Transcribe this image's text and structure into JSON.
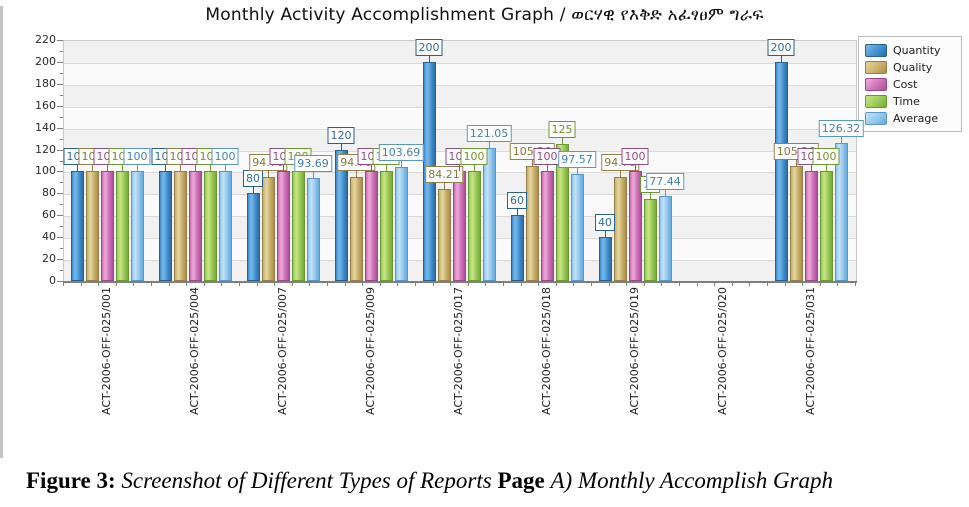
{
  "title": "Monthly Activity Accomplishment Graph / ወርሃዊ የእቅድ አፈፃፀም ግራፍ",
  "chart_data": {
    "type": "bar",
    "title": "Monthly Activity Accomplishment Graph / ወርሃዊ የእቅድ አፈፃፀም ግራፍ",
    "categories": [
      "ACT-2006-OFF-025/001",
      "ACT-2006-OFF-025/004",
      "ACT-2006-OFF-025/007",
      "ACT-2006-OFF-025/009",
      "ACT-2006-OFF-025/017",
      "ACT-2006-OFF-025/018",
      "ACT-2006-OFF-025/019",
      "ACT-2006-OFF-025/020",
      "ACT-2006-OFF-025/031"
    ],
    "series": [
      {
        "name": "Quantity",
        "values": [
          100,
          100,
          80,
          120,
          200,
          60,
          40,
          null,
          200
        ],
        "colors": {
          "light": "#7cb9e8",
          "base": "#3f8ecf",
          "dark": "#2e6da8",
          "border": "#2a628f",
          "label": "#2f6da5"
        }
      },
      {
        "name": "Quality",
        "values": [
          100,
          100,
          94.76,
          94.76,
          84.21,
          105.26,
          94.76,
          null,
          105.26
        ],
        "colors": {
          "light": "#e6d7a2",
          "base": "#c7ae68",
          "dark": "#a68f4b",
          "border": "#94804a",
          "label": "#8a7538"
        }
      },
      {
        "name": "Cost",
        "values": [
          100,
          100,
          100,
          100,
          100,
          100,
          100,
          null,
          100
        ],
        "colors": {
          "light": "#ecacda",
          "base": "#cc6eb4",
          "dark": "#a85494",
          "border": "#954a85",
          "label": "#a2438d"
        }
      },
      {
        "name": "Time",
        "values": [
          100,
          100,
          100,
          100,
          100,
          125,
          75,
          null,
          100
        ],
        "colors": {
          "light": "#c8e58c",
          "base": "#97c951",
          "dark": "#7aa93c",
          "border": "#6d9634",
          "label": "#6f9426"
        }
      },
      {
        "name": "Average",
        "values": [
          100,
          100,
          93.69,
          103.69,
          121.05,
          97.57,
          77.44,
          null,
          126.32
        ],
        "colors": {
          "light": "#c6e3f8",
          "base": "#8ec5ee",
          "dark": "#64a8dc",
          "border": "#5a96c8",
          "label": "#3f7fb5"
        }
      }
    ],
    "ylim": [
      0,
      220
    ],
    "ytick_step": 20,
    "yticks": [
      0,
      20,
      40,
      60,
      80,
      100,
      120,
      140,
      160,
      180,
      200,
      220
    ],
    "grid": true,
    "legend_position": "top-right",
    "legend_labels": [
      "Quantity",
      "Quality",
      "Cost",
      "Time",
      "Average"
    ]
  },
  "caption": {
    "segments": [
      {
        "text": "Figure 3:  ",
        "style": "bold"
      },
      {
        "text": "Screenshot of Different Types of Reports ",
        "style": "italic"
      },
      {
        "text": "Page ",
        "style": "bold"
      },
      {
        "text": "A) Monthly Accomplish Graph",
        "style": "italic"
      }
    ]
  }
}
